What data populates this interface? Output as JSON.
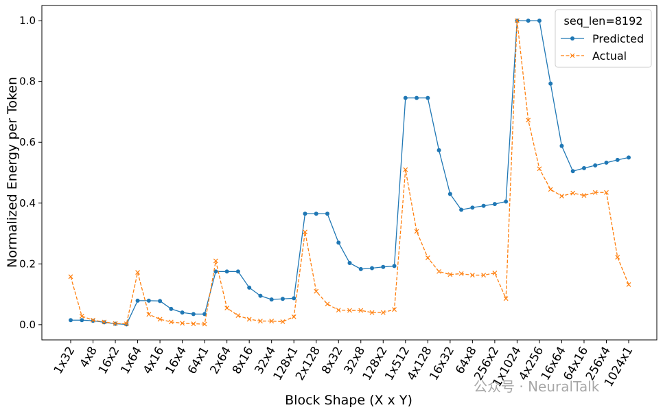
{
  "chart_data": {
    "type": "line",
    "xlabel": "Block Shape (X x Y)",
    "ylabel": "Normalized Energy per Token",
    "categories": [
      "1x32",
      null,
      "4x8",
      null,
      "16x2",
      null,
      "1x64",
      null,
      "4x16",
      null,
      "16x4",
      null,
      "64x1",
      null,
      "2x64",
      null,
      "8x16",
      null,
      "32x4",
      null,
      "128x1",
      null,
      "2x128",
      null,
      "8x32",
      null,
      "32x8",
      null,
      "128x2",
      null,
      "1x512",
      null,
      "4x128",
      null,
      "16x32",
      null,
      "64x8",
      null,
      "256x2",
      null,
      "1x1024",
      null,
      "4x256",
      null,
      "16x64",
      null,
      "64x16",
      null,
      "256x4",
      null,
      "1024x1"
    ],
    "series": [
      {
        "name": "Predicted",
        "color": "#1f77b4",
        "marker": "circle",
        "dash": false,
        "values": [
          0.015,
          0.015,
          0.013,
          0.008,
          0.003,
          0.001,
          0.079,
          0.079,
          0.078,
          0.052,
          0.04,
          0.035,
          0.035,
          0.175,
          0.175,
          0.175,
          0.122,
          0.095,
          0.083,
          0.085,
          0.087,
          0.365,
          0.365,
          0.365,
          0.27,
          0.203,
          0.183,
          0.186,
          0.19,
          0.193,
          0.746,
          0.746,
          0.746,
          0.574,
          0.43,
          0.378,
          0.385,
          0.391,
          0.397,
          0.405,
          1.0,
          1.0,
          1.0,
          0.793,
          0.588,
          0.505,
          0.515,
          0.524,
          0.533,
          0.542,
          0.55
        ]
      },
      {
        "name": "Actual",
        "color": "#ff7f0e",
        "marker": "x",
        "dash": true,
        "values": [
          0.158,
          0.028,
          0.015,
          0.009,
          0.004,
          0.003,
          0.172,
          0.034,
          0.018,
          0.009,
          0.005,
          0.003,
          0.002,
          0.21,
          0.055,
          0.03,
          0.018,
          0.012,
          0.012,
          0.01,
          0.026,
          0.305,
          0.11,
          0.068,
          0.048,
          0.047,
          0.047,
          0.04,
          0.04,
          0.05,
          0.51,
          0.307,
          0.22,
          0.175,
          0.165,
          0.168,
          0.163,
          0.163,
          0.17,
          0.086,
          1.0,
          0.673,
          0.513,
          0.445,
          0.423,
          0.433,
          0.425,
          0.435,
          0.435,
          0.222,
          0.132
        ]
      }
    ],
    "ylim": [
      -0.05,
      1.05
    ],
    "yticks": [
      {
        "value": 0,
        "label": "0.0"
      },
      0.2,
      0.4,
      0.6,
      0.8,
      {
        "value": 1,
        "label": "1.0"
      }
    ],
    "legend_title": "seq_len=8192",
    "legend_position": "upper right",
    "grid": false,
    "watermark": "公众号 · NeuralTalk"
  }
}
